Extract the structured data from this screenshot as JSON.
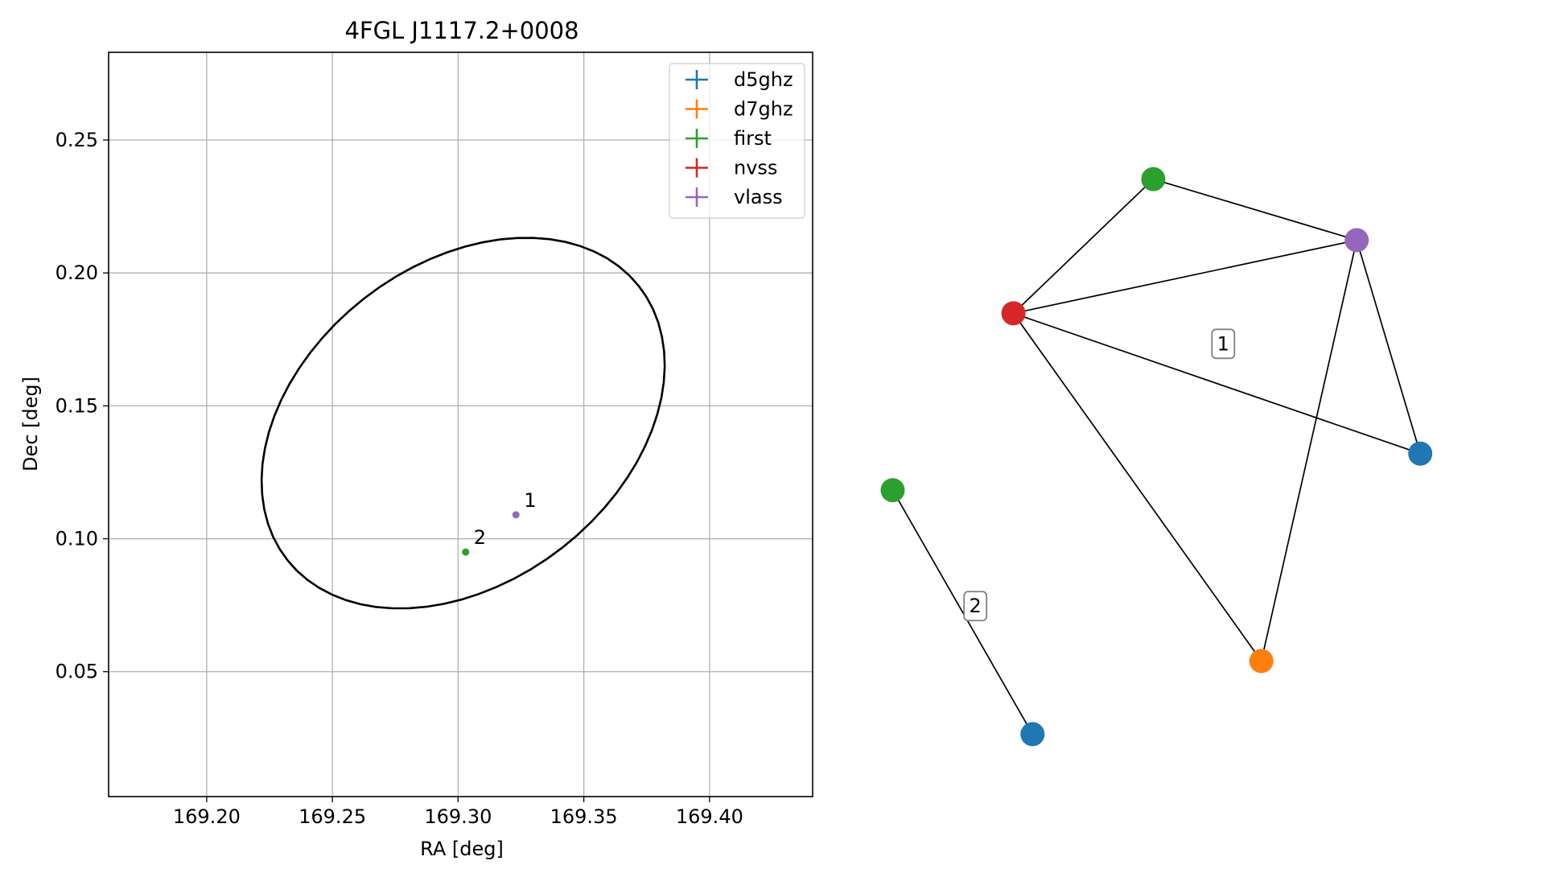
{
  "chart_data": [
    {
      "type": "scatter",
      "title": "4FGL J1117.2+0008",
      "xlabel": "RA [deg]",
      "ylabel": "Dec [deg]",
      "xlim": [
        169.161,
        169.441
      ],
      "ylim": [
        0.003,
        0.283
      ],
      "xticks": [
        169.2,
        169.25,
        169.3,
        169.35,
        169.4
      ],
      "xtick_labels": [
        "169.20",
        "169.25",
        "169.30",
        "169.35",
        "169.40"
      ],
      "yticks": [
        0.05,
        0.1,
        0.15,
        0.2,
        0.25
      ],
      "ytick_labels": [
        "0.05",
        "0.10",
        "0.15",
        "0.20",
        "0.25"
      ],
      "grid": true,
      "legend_position": "top-right",
      "legend": [
        {
          "name": "d5ghz",
          "color": "#1f77b4"
        },
        {
          "name": "d7ghz",
          "color": "#ff7f0e"
        },
        {
          "name": "first",
          "color": "#2ca02c"
        },
        {
          "name": "nvss",
          "color": "#d62728"
        },
        {
          "name": "vlass",
          "color": "#9467bd"
        }
      ],
      "ellipse": {
        "center": [
          169.302,
          0.1435
        ],
        "semi_major": 0.087,
        "semi_minor": 0.061,
        "angle_deg": 33
      },
      "points": [
        {
          "label": "1",
          "ra": 169.323,
          "dec": 0.109,
          "color": "#9467bd"
        },
        {
          "label": "2",
          "ra": 169.303,
          "dec": 0.095,
          "color": "#2ca02c"
        }
      ]
    },
    {
      "type": "graph",
      "nodes": [
        {
          "id": "n_first_1",
          "color": "#2ca02c",
          "x": 0.46,
          "y": 0.92
        },
        {
          "id": "n_vlass",
          "color": "#9467bd",
          "x": 0.78,
          "y": 0.82
        },
        {
          "id": "n_nvss",
          "color": "#d62728",
          "x": 0.24,
          "y": 0.7
        },
        {
          "id": "n_d5_1",
          "color": "#1f77b4",
          "x": 0.88,
          "y": 0.47
        },
        {
          "id": "n_d7",
          "color": "#ff7f0e",
          "x": 0.63,
          "y": 0.13
        },
        {
          "id": "n_first_2",
          "color": "#2ca02c",
          "x": 0.05,
          "y": 0.41
        },
        {
          "id": "n_d5_2",
          "color": "#1f77b4",
          "x": 0.27,
          "y": 0.01
        }
      ],
      "edges": [
        [
          "n_first_1",
          "n_vlass"
        ],
        [
          "n_first_1",
          "n_nvss"
        ],
        [
          "n_nvss",
          "n_vlass"
        ],
        [
          "n_nvss",
          "n_d5_1"
        ],
        [
          "n_nvss",
          "n_d7"
        ],
        [
          "n_vlass",
          "n_d5_1"
        ],
        [
          "n_vlass",
          "n_d7"
        ],
        [
          "n_first_2",
          "n_d5_2"
        ]
      ],
      "cluster_labels": [
        {
          "text": "1",
          "x": 0.57,
          "y": 0.65
        },
        {
          "text": "2",
          "x": 0.18,
          "y": 0.22
        }
      ]
    }
  ]
}
